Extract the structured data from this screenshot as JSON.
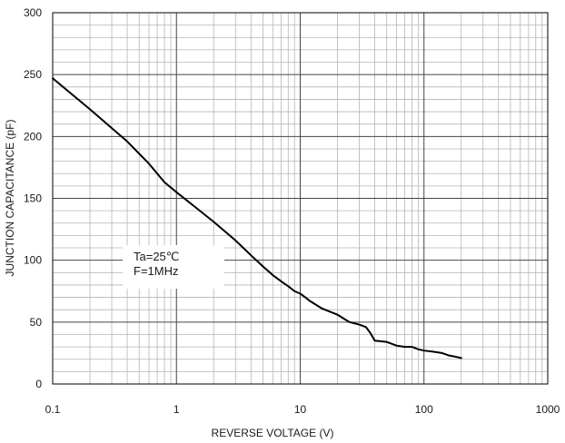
{
  "chart_data": {
    "type": "line",
    "title": "",
    "xlabel": "REVERSE VOLTAGE (V)",
    "ylabel": "JUNCTION CAPACITANCE (pF)",
    "xscale": "log",
    "xlim": [
      0.1,
      1000
    ],
    "ylim": [
      0,
      300
    ],
    "x_ticks": [
      0.1,
      1,
      10,
      100,
      1000
    ],
    "x_tick_labels": [
      "0.1",
      "1",
      "10",
      "100",
      "1000"
    ],
    "y_ticks": [
      0,
      50,
      100,
      150,
      200,
      250,
      300
    ],
    "y_tick_labels": [
      "0",
      "50",
      "100",
      "150",
      "200",
      "250",
      "300"
    ],
    "grid": true,
    "annotation": [
      "Ta=25℃",
      "F=1MHz"
    ],
    "series": [
      {
        "x": [
          0.1,
          0.2,
          0.4,
          0.6,
          0.8,
          1,
          1.5,
          2,
          3,
          4,
          5,
          6,
          7,
          8,
          9,
          10,
          11,
          12,
          15,
          20,
          25,
          30,
          34,
          37,
          40,
          50,
          60,
          70,
          80,
          90,
          100,
          120,
          140,
          160,
          180,
          200
        ],
        "values": [
          247,
          222,
          196,
          178,
          163,
          155,
          141,
          131,
          116,
          104,
          95,
          88,
          83,
          79,
          75,
          73,
          70,
          67,
          61,
          56,
          50,
          48,
          46,
          41,
          35,
          34,
          31,
          30,
          30,
          28,
          27,
          26,
          25,
          23,
          22,
          21
        ]
      }
    ]
  }
}
